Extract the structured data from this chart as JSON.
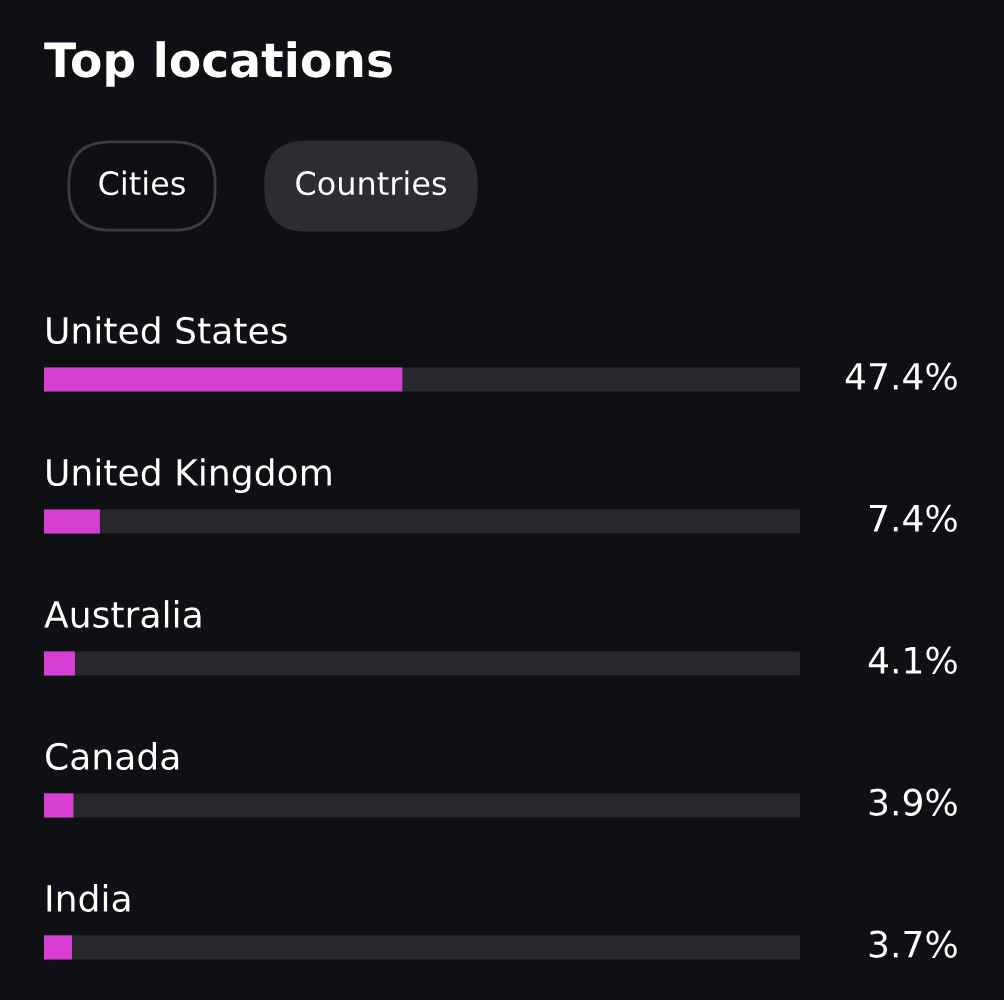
{
  "chart_data": {
    "type": "bar",
    "orientation": "horizontal",
    "title": "Top locations",
    "annotations": [
      "Cities",
      "Countries"
    ],
    "categories": [
      "United States",
      "United Kingdom",
      "Australia",
      "Canada",
      "India"
    ],
    "values": [
      47.4,
      7.4,
      4.1,
      3.9,
      3.7
    ],
    "value_labels": [
      "47.4%",
      "7.4%",
      "4.1%",
      "3.9%",
      "3.7%"
    ],
    "color": "#d63fd1",
    "xlim": [
      0,
      100
    ]
  }
}
